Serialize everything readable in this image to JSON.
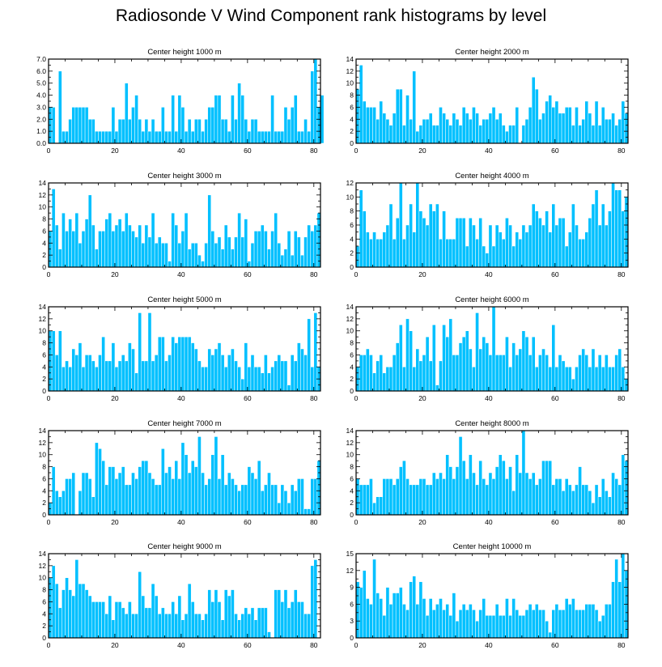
{
  "title": "Radiosonde V Wind Component rank histograms by level",
  "colors": {
    "bar": "#00c0ff",
    "axis": "#000000",
    "background": "#ffffff"
  },
  "chart_data": [
    {
      "type": "bar",
      "title": "Center height 1000 m",
      "xlim": [
        0,
        82
      ],
      "ylim": [
        0,
        7
      ],
      "xticks": [
        0,
        20,
        40,
        60,
        80
      ],
      "yticks": [
        "0.0",
        "1.0",
        "2.0",
        "3.0",
        "4.0",
        "5.0",
        "6.0",
        "7.0"
      ],
      "values": [
        3,
        3,
        0,
        6,
        1,
        1,
        2,
        3,
        3,
        3,
        3,
        3,
        2,
        2,
        1,
        1,
        1,
        1,
        1,
        3,
        1,
        2,
        2,
        5,
        2,
        3,
        4,
        2,
        1,
        2,
        1,
        2,
        1,
        1,
        3,
        1,
        1,
        4,
        1,
        4,
        3,
        1,
        2,
        1,
        2,
        2,
        1,
        2,
        3,
        3,
        4,
        4,
        2,
        2,
        1,
        4,
        2,
        5,
        4,
        2,
        1,
        2,
        2,
        1,
        1,
        1,
        1,
        4,
        1,
        1,
        1,
        3,
        2,
        3,
        4,
        1,
        1,
        2,
        1,
        6,
        7,
        3,
        4
      ]
    },
    {
      "type": "bar",
      "title": "Center height 2000 m",
      "xlim": [
        0,
        82
      ],
      "ylim": [
        0,
        14
      ],
      "xticks": [
        0,
        20,
        40,
        60,
        80
      ],
      "yticks": [
        "0",
        "2",
        "4",
        "6",
        "8",
        "10",
        "12",
        "14"
      ],
      "values": [
        9,
        13,
        7,
        6,
        6,
        6,
        4,
        7,
        5,
        4,
        3,
        5,
        9,
        9,
        3,
        8,
        4,
        12,
        2,
        3,
        4,
        4,
        5,
        3,
        3,
        6,
        5,
        4,
        3,
        5,
        4,
        3,
        6,
        5,
        4,
        6,
        5,
        3,
        4,
        4,
        5,
        6,
        4,
        5,
        3,
        2,
        3,
        3,
        6,
        0,
        3,
        4,
        6,
        11,
        9,
        4,
        5,
        7,
        8,
        6,
        7,
        5,
        5,
        6,
        6,
        3,
        6,
        3,
        4,
        7,
        5,
        3,
        7,
        3,
        6,
        4,
        4,
        5,
        3,
        4,
        7,
        5
      ]
    },
    {
      "type": "bar",
      "title": "Center height 3000 m",
      "xlim": [
        0,
        82
      ],
      "ylim": [
        0,
        14
      ],
      "xticks": [
        0,
        20,
        40,
        60,
        80
      ],
      "yticks": [
        "0",
        "2",
        "4",
        "6",
        "8",
        "10",
        "12",
        "14"
      ],
      "values": [
        6,
        13,
        7,
        3,
        9,
        6,
        8,
        6,
        9,
        4,
        6,
        8,
        12,
        7,
        3,
        6,
        6,
        8,
        9,
        6,
        7,
        8,
        6,
        9,
        7,
        6,
        5,
        7,
        4,
        7,
        5,
        9,
        4,
        5,
        4,
        4,
        1,
        9,
        7,
        4,
        6,
        9,
        3,
        4,
        4,
        2,
        1,
        4,
        12,
        6,
        4,
        5,
        3,
        7,
        5,
        3,
        5,
        9,
        5,
        8,
        1,
        4,
        6,
        6,
        7,
        6,
        3,
        6,
        9,
        4,
        2,
        3,
        6,
        2,
        6,
        5,
        2,
        5,
        7,
        6,
        7,
        9
      ]
    },
    {
      "type": "bar",
      "title": "Center height 4000 m",
      "xlim": [
        0,
        82
      ],
      "ylim": [
        0,
        12
      ],
      "xticks": [
        0,
        20,
        40,
        60,
        80
      ],
      "yticks": [
        "0",
        "2",
        "4",
        "6",
        "8",
        "10",
        "12"
      ],
      "values": [
        3,
        11,
        8,
        5,
        4,
        5,
        4,
        4,
        5,
        6,
        9,
        4,
        7,
        12,
        4,
        6,
        9,
        5,
        12,
        8,
        7,
        6,
        9,
        8,
        9,
        4,
        8,
        4,
        4,
        4,
        7,
        7,
        7,
        3,
        7,
        6,
        4,
        7,
        3,
        2,
        6,
        3,
        6,
        5,
        4,
        7,
        6,
        3,
        5,
        4,
        6,
        5,
        6,
        9,
        8,
        7,
        6,
        8,
        5,
        9,
        6,
        7,
        7,
        3,
        5,
        9,
        6,
        4,
        4,
        5,
        7,
        9,
        11,
        6,
        9,
        6,
        8,
        12,
        11,
        11,
        8,
        10
      ]
    },
    {
      "type": "bar",
      "title": "Center height 5000 m",
      "xlim": [
        0,
        82
      ],
      "ylim": [
        0,
        14
      ],
      "xticks": [
        0,
        20,
        40,
        60,
        80
      ],
      "yticks": [
        "0",
        "2",
        "4",
        "6",
        "8",
        "10",
        "12",
        "14"
      ],
      "values": [
        10,
        10,
        6,
        10,
        4,
        5,
        4,
        7,
        6,
        8,
        4,
        6,
        6,
        5,
        4,
        6,
        9,
        5,
        5,
        8,
        4,
        5,
        6,
        5,
        8,
        7,
        3,
        13,
        5,
        5,
        13,
        5,
        6,
        9,
        9,
        5,
        6,
        9,
        8,
        9,
        9,
        9,
        9,
        8,
        7,
        5,
        4,
        4,
        7,
        6,
        7,
        8,
        6,
        4,
        6,
        7,
        5,
        4,
        2,
        8,
        4,
        6,
        4,
        4,
        3,
        6,
        3,
        4,
        5,
        6,
        5,
        5,
        1,
        6,
        5,
        8,
        7,
        6,
        12,
        4,
        13,
        4
      ]
    },
    {
      "type": "bar",
      "title": "Center height 6000 m",
      "xlim": [
        0,
        82
      ],
      "ylim": [
        0,
        14
      ],
      "xticks": [
        0,
        20,
        40,
        60,
        80
      ],
      "yticks": [
        "0",
        "2",
        "4",
        "6",
        "8",
        "10",
        "12",
        "14"
      ],
      "values": [
        4,
        6,
        6,
        7,
        6,
        3,
        5,
        6,
        3,
        4,
        4,
        6,
        8,
        11,
        4,
        12,
        10,
        4,
        7,
        5,
        6,
        9,
        5,
        11,
        1,
        5,
        11,
        9,
        12,
        6,
        6,
        8,
        9,
        10,
        7,
        4,
        13,
        7,
        9,
        8,
        6,
        14,
        6,
        6,
        6,
        9,
        4,
        8,
        6,
        7,
        10,
        9,
        6,
        9,
        4,
        6,
        7,
        6,
        4,
        11,
        4,
        6,
        5,
        4,
        4,
        2,
        4,
        6,
        7,
        6,
        4,
        7,
        4,
        6,
        4,
        6,
        4,
        4,
        6,
        7,
        4,
        2
      ]
    },
    {
      "type": "bar",
      "title": "Center height 7000 m",
      "xlim": [
        0,
        82
      ],
      "ylim": [
        0,
        14
      ],
      "xticks": [
        0,
        20,
        40,
        60,
        80
      ],
      "yticks": [
        "0",
        "2",
        "4",
        "6",
        "8",
        "10",
        "12",
        "14"
      ],
      "values": [
        2,
        8,
        4,
        3,
        4,
        6,
        6,
        7,
        0,
        4,
        7,
        7,
        6,
        3,
        12,
        11,
        9,
        5,
        8,
        8,
        6,
        7,
        8,
        5,
        5,
        7,
        6,
        8,
        9,
        9,
        7,
        6,
        5,
        5,
        11,
        7,
        8,
        6,
        9,
        6,
        12,
        10,
        7,
        9,
        8,
        13,
        7,
        5,
        6,
        10,
        13,
        6,
        10,
        5,
        7,
        6,
        5,
        4,
        5,
        5,
        8,
        7,
        6,
        9,
        4,
        5,
        7,
        5,
        5,
        2,
        5,
        4,
        2,
        5,
        4,
        6,
        6,
        1,
        1,
        6,
        6,
        9
      ]
    },
    {
      "type": "bar",
      "title": "Center height 8000 m",
      "xlim": [
        0,
        82
      ],
      "ylim": [
        0,
        14
      ],
      "xticks": [
        0,
        20,
        40,
        60,
        80
      ],
      "yticks": [
        "0",
        "2",
        "4",
        "6",
        "8",
        "10",
        "12",
        "14"
      ],
      "values": [
        6,
        5,
        5,
        5,
        6,
        2,
        3,
        3,
        6,
        6,
        6,
        5,
        6,
        8,
        9,
        6,
        5,
        5,
        5,
        6,
        6,
        5,
        5,
        7,
        6,
        7,
        6,
        10,
        8,
        6,
        8,
        13,
        9,
        6,
        10,
        7,
        5,
        9,
        6,
        5,
        7,
        6,
        8,
        10,
        9,
        6,
        8,
        4,
        10,
        7,
        14,
        7,
        6,
        7,
        5,
        6,
        9,
        9,
        9,
        5,
        6,
        6,
        4,
        6,
        5,
        4,
        5,
        8,
        5,
        5,
        4,
        2,
        5,
        3,
        6,
        4,
        3,
        7,
        6,
        5,
        10,
        9
      ]
    },
    {
      "type": "bar",
      "title": "Center height 9000 m",
      "xlim": [
        0,
        82
      ],
      "ylim": [
        0,
        14
      ],
      "xticks": [
        0,
        20,
        40,
        60,
        80
      ],
      "yticks": [
        "0",
        "2",
        "4",
        "6",
        "8",
        "10",
        "12",
        "14"
      ],
      "values": [
        10,
        12,
        9,
        5,
        8,
        10,
        8,
        7,
        13,
        9,
        9,
        8,
        7,
        6,
        6,
        6,
        6,
        4,
        7,
        3,
        6,
        6,
        5,
        4,
        6,
        4,
        4,
        11,
        7,
        5,
        5,
        9,
        7,
        4,
        5,
        4,
        4,
        6,
        4,
        7,
        3,
        4,
        9,
        6,
        4,
        4,
        3,
        4,
        8,
        6,
        8,
        6,
        3,
        8,
        7,
        8,
        4,
        3,
        4,
        5,
        4,
        5,
        3,
        5,
        5,
        5,
        1,
        0,
        8,
        8,
        6,
        8,
        5,
        6,
        8,
        6,
        6,
        4,
        4,
        12,
        13
      ]
    },
    {
      "type": "bar",
      "title": "Center height 10000 m",
      "xlim": [
        0,
        82
      ],
      "ylim": [
        0,
        15
      ],
      "xticks": [
        0,
        20,
        40,
        60,
        80
      ],
      "yticks": [
        "0",
        "3",
        "6",
        "9",
        "12",
        "15"
      ],
      "values": [
        10,
        9,
        12,
        7,
        6,
        14,
        8,
        7,
        4,
        9,
        6,
        8,
        8,
        9,
        6,
        5,
        10,
        11,
        6,
        10,
        7,
        4,
        7,
        5,
        6,
        7,
        5,
        6,
        4,
        8,
        3,
        5,
        6,
        5,
        6,
        5,
        3,
        5,
        7,
        4,
        4,
        4,
        6,
        4,
        4,
        7,
        4,
        7,
        5,
        4,
        4,
        5,
        6,
        5,
        6,
        5,
        5,
        3,
        1,
        5,
        6,
        5,
        5,
        7,
        6,
        7,
        5,
        5,
        5,
        6,
        6,
        6,
        5,
        3,
        4,
        6,
        6,
        10,
        14,
        10,
        15,
        12
      ]
    }
  ]
}
